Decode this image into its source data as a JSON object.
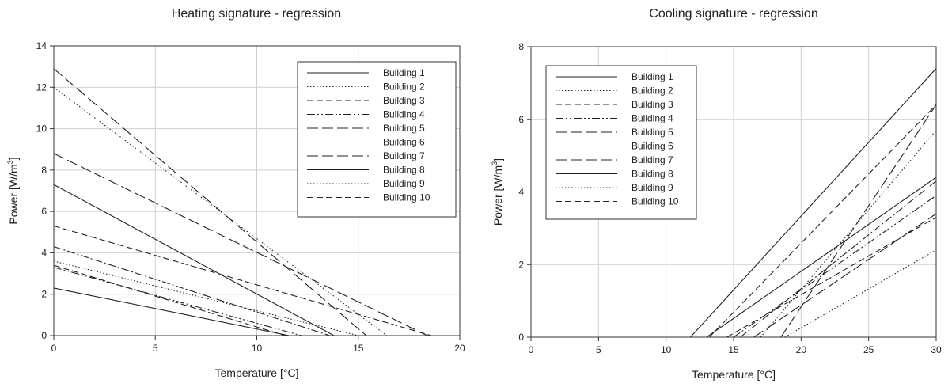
{
  "chart_data": [
    {
      "type": "line",
      "title": "Heating signature - regression",
      "xlabel": "Temperature [°C]",
      "ylabel_main": "Power [W/m",
      "ylabel_sup": "3",
      "ylabel_close": "]",
      "xlim": [
        0,
        20
      ],
      "ylim": [
        0,
        14
      ],
      "xticks": [
        0,
        5,
        10,
        15,
        20
      ],
      "yticks": [
        0,
        2,
        4,
        6,
        8,
        10,
        12,
        14
      ],
      "grid": true,
      "legend_position": "top-right",
      "series": [
        {
          "name": "Building 1",
          "style": "solid",
          "x": [
            0,
            11.6
          ],
          "y": [
            2.3,
            0
          ]
        },
        {
          "name": "Building 2",
          "style": "dotted",
          "x": [
            0,
            16.4
          ],
          "y": [
            12.0,
            0
          ]
        },
        {
          "name": "Building 3",
          "style": "dashed",
          "x": [
            0,
            11.4
          ],
          "y": [
            3.4,
            0
          ]
        },
        {
          "name": "Building 4",
          "style": "dashdotdot",
          "x": [
            0,
            12.2
          ],
          "y": [
            3.3,
            0
          ]
        },
        {
          "name": "Building 5",
          "style": "longdash",
          "x": [
            0,
            18.4
          ],
          "y": [
            8.8,
            0
          ]
        },
        {
          "name": "Building 6",
          "style": "dashdot",
          "x": [
            0,
            13.6
          ],
          "y": [
            4.3,
            0
          ]
        },
        {
          "name": "Building 7",
          "style": "longdash",
          "x": [
            0,
            15.4
          ],
          "y": [
            12.9,
            0
          ]
        },
        {
          "name": "Building 8",
          "style": "solid",
          "x": [
            0,
            13.8
          ],
          "y": [
            7.3,
            0
          ]
        },
        {
          "name": "Building 9",
          "style": "dotted",
          "x": [
            0,
            15.0
          ],
          "y": [
            3.6,
            0
          ]
        },
        {
          "name": "Building 10",
          "style": "dashed",
          "x": [
            0,
            18.6
          ],
          "y": [
            5.3,
            0
          ]
        }
      ]
    },
    {
      "type": "line",
      "title": "Cooling signature - regression",
      "xlabel": "Temperature [°C]",
      "ylabel_main": "Power [W/m",
      "ylabel_sup": "3",
      "ylabel_close": "]",
      "xlim": [
        0,
        30
      ],
      "ylim": [
        0,
        8
      ],
      "xticks": [
        0,
        5,
        10,
        15,
        20,
        25,
        30
      ],
      "yticks": [
        0,
        2,
        4,
        6,
        8
      ],
      "grid": true,
      "legend_position": "top-left",
      "series": [
        {
          "name": "Building 1",
          "style": "solid",
          "x": [
            11.8,
            30
          ],
          "y": [
            0,
            7.4
          ]
        },
        {
          "name": "Building 2",
          "style": "dotted",
          "x": [
            17.0,
            30
          ],
          "y": [
            0,
            5.7
          ]
        },
        {
          "name": "Building 3",
          "style": "dashed",
          "x": [
            13.2,
            30
          ],
          "y": [
            0,
            6.4
          ]
        },
        {
          "name": "Building 4",
          "style": "dashdotdot",
          "x": [
            15.0,
            30
          ],
          "y": [
            0,
            3.9
          ]
        },
        {
          "name": "Building 5",
          "style": "longdash",
          "x": [
            18.5,
            30
          ],
          "y": [
            0,
            6.4
          ]
        },
        {
          "name": "Building 6",
          "style": "dashdot",
          "x": [
            15.5,
            30
          ],
          "y": [
            0,
            4.3
          ]
        },
        {
          "name": "Building 7",
          "style": "longdash",
          "x": [
            16.5,
            30
          ],
          "y": [
            0,
            3.4
          ]
        },
        {
          "name": "Building 8",
          "style": "solid",
          "x": [
            13.0,
            30
          ],
          "y": [
            0,
            4.4
          ]
        },
        {
          "name": "Building 9",
          "style": "dotted",
          "x": [
            18.8,
            30
          ],
          "y": [
            0,
            2.4
          ]
        },
        {
          "name": "Building 10",
          "style": "dashed",
          "x": [
            14.5,
            30
          ],
          "y": [
            0,
            3.3
          ]
        }
      ]
    }
  ]
}
